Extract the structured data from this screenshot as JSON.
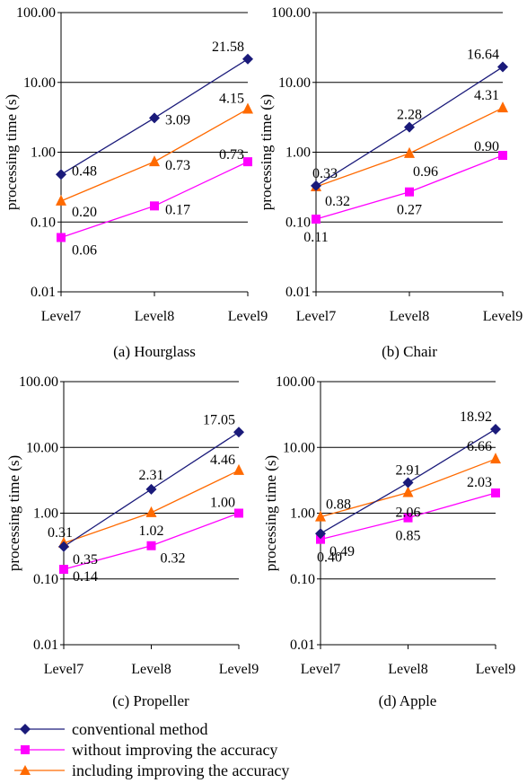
{
  "chart_data": [
    {
      "type": "line",
      "title": "(a) Hourglass",
      "ylabel": "processing time (s)",
      "yscale": "log",
      "ylim": [
        0.01,
        100
      ],
      "yticks": [
        "0.01",
        "0.10",
        "1.00",
        "10.00",
        "100.00"
      ],
      "categories": [
        "Level7",
        "Level8",
        "Level9"
      ],
      "grid": true,
      "series": [
        {
          "name": "conventional method",
          "values": [
            0.48,
            3.09,
            21.58
          ],
          "labels": [
            "0.48",
            "3.09",
            "21.58"
          ]
        },
        {
          "name": "without improving the accuracy",
          "values": [
            0.06,
            0.17,
            0.73
          ],
          "labels": [
            "0.06",
            "0.17",
            "0.73"
          ]
        },
        {
          "name": "including improving the accuracy",
          "values": [
            0.2,
            0.73,
            4.15
          ],
          "labels": [
            "0.20",
            "0.73",
            "4.15"
          ]
        }
      ]
    },
    {
      "type": "line",
      "title": "(b) Chair",
      "ylabel": "processing time (s)",
      "yscale": "log",
      "ylim": [
        0.01,
        100
      ],
      "yticks": [
        "0.01",
        "0.10",
        "1.00",
        "10.00",
        "100.00"
      ],
      "categories": [
        "Level7",
        "Level8",
        "Level9"
      ],
      "grid": true,
      "series": [
        {
          "name": "conventional method",
          "values": [
            0.33,
            2.28,
            16.64
          ],
          "labels": [
            "0.33",
            "2.28",
            "16.64"
          ]
        },
        {
          "name": "without improving the accuracy",
          "values": [
            0.11,
            0.27,
            0.9
          ],
          "labels": [
            "0.11",
            "0.27",
            "0.90"
          ]
        },
        {
          "name": "including improving the accuracy",
          "values": [
            0.32,
            0.96,
            4.31
          ],
          "labels": [
            "0.32",
            "0.96",
            "4.31"
          ]
        }
      ]
    },
    {
      "type": "line",
      "title": "(c) Propeller",
      "ylabel": "processing time (s)",
      "yscale": "log",
      "ylim": [
        0.01,
        100
      ],
      "yticks": [
        "0.01",
        "0.10",
        "1.00",
        "10.00",
        "100.00"
      ],
      "categories": [
        "Level7",
        "Level8",
        "Level9"
      ],
      "grid": true,
      "series": [
        {
          "name": "conventional method",
          "values": [
            0.31,
            2.31,
            17.05
          ],
          "labels": [
            "0.31",
            "2.31",
            "17.05"
          ]
        },
        {
          "name": "without improving the accuracy",
          "values": [
            0.14,
            0.32,
            1.0
          ],
          "labels": [
            "0.14",
            "0.32",
            "1.00"
          ]
        },
        {
          "name": "including improving the accuracy",
          "values": [
            0.35,
            1.02,
            4.46
          ],
          "labels": [
            "0.35",
            "1.02",
            "4.46"
          ]
        }
      ]
    },
    {
      "type": "line",
      "title": "(d) Apple",
      "ylabel": "processing time (s)",
      "yscale": "log",
      "ylim": [
        0.01,
        100
      ],
      "yticks": [
        "0.01",
        "0.10",
        "1.00",
        "10.00",
        "100.00"
      ],
      "categories": [
        "Level7",
        "Level8",
        "Level9"
      ],
      "grid": true,
      "series": [
        {
          "name": "conventional method",
          "values": [
            0.49,
            2.91,
            18.92
          ],
          "labels": [
            "0.49",
            "2.91",
            "18.92"
          ]
        },
        {
          "name": "without improving the accuracy",
          "values": [
            0.4,
            0.85,
            2.03
          ],
          "labels": [
            "0.40",
            "0.85",
            "2.03"
          ]
        },
        {
          "name": "including improving the accuracy",
          "values": [
            0.88,
            2.06,
            6.66
          ],
          "labels": [
            "0.88",
            "2.06",
            "6.66"
          ]
        }
      ]
    }
  ],
  "legend": {
    "placement": "bottom",
    "items": [
      {
        "label": "conventional method",
        "color": "#1a1a7a",
        "marker": "diamond"
      },
      {
        "label": "without improving the accuracy",
        "color": "#ff00ff",
        "marker": "square"
      },
      {
        "label": "including improving the accuracy",
        "color": "#ff6a00",
        "marker": "triangle"
      }
    ]
  },
  "colors": {
    "conventional": "#1a1a7a",
    "without": "#ff00ff",
    "including": "#ff6a00",
    "grid": "#000000"
  }
}
